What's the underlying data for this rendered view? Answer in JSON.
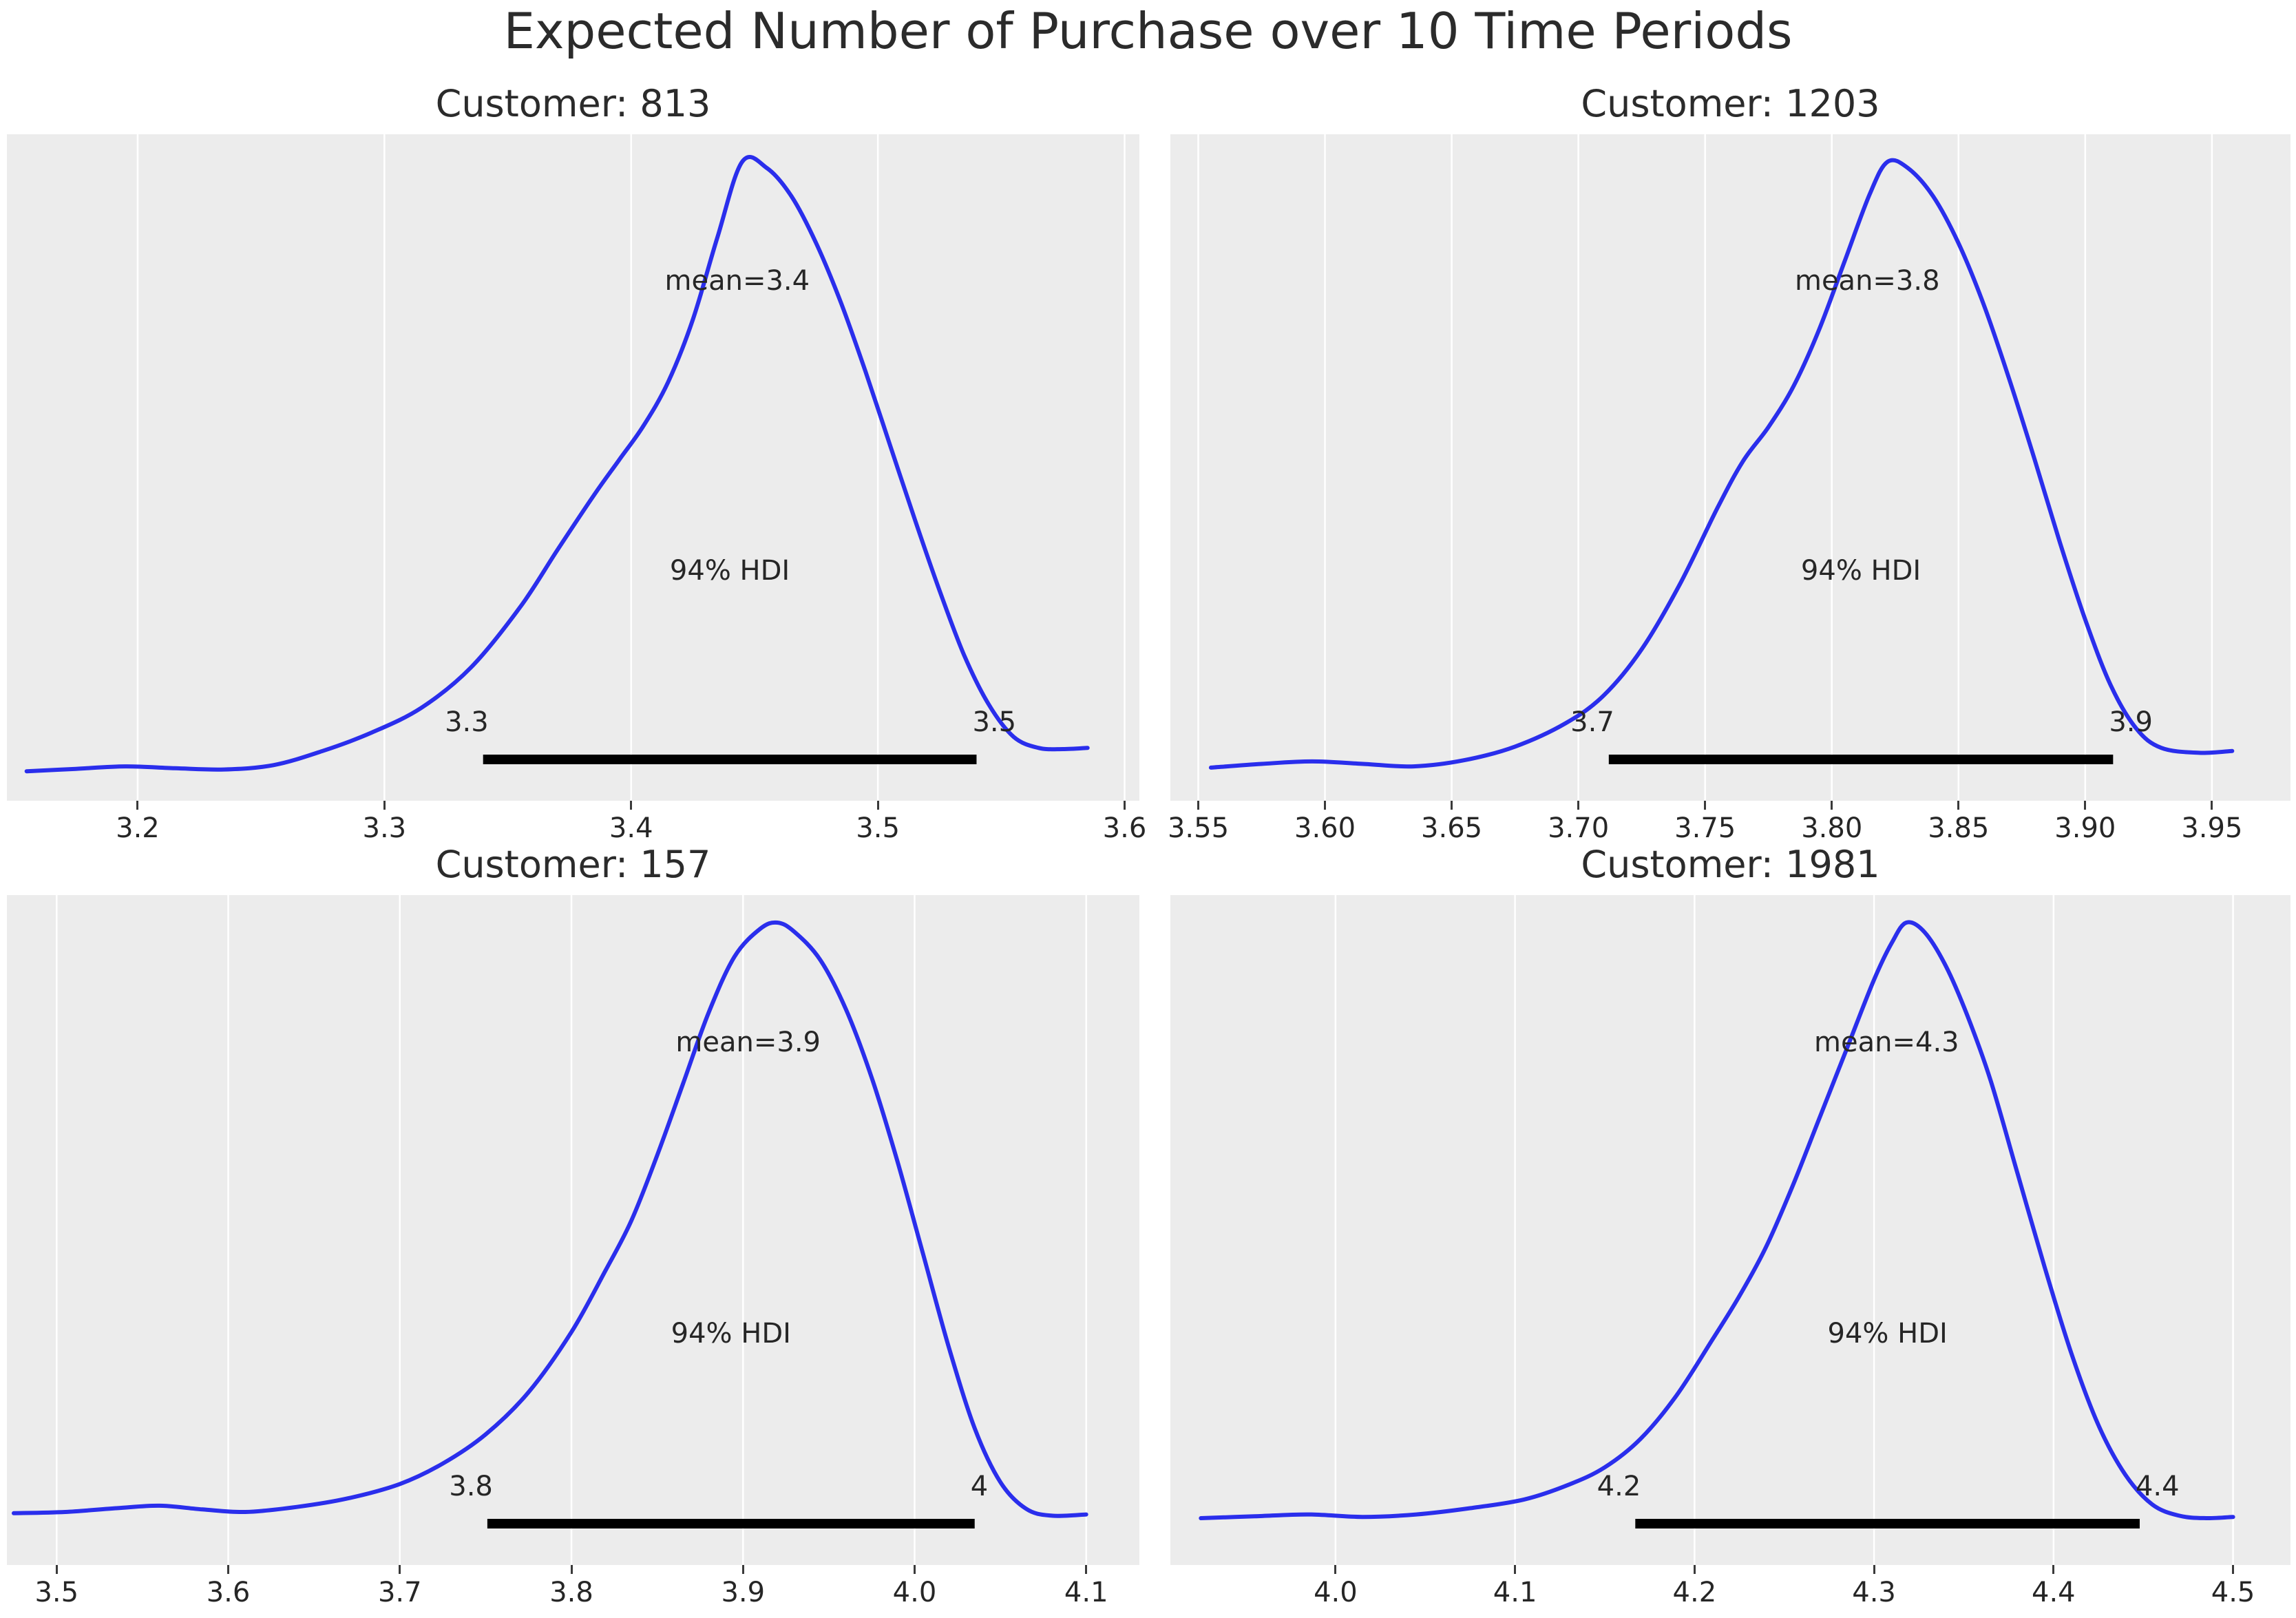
{
  "figure": {
    "title": "Expected Number of Purchase over 10 Time Periods"
  },
  "colors": {
    "figure_bg": "#ffffff",
    "axes_bg": "#ececec",
    "grid": "#ffffff",
    "curve": "#2a2eec",
    "hdi_bar": "#000000",
    "text": "#262626"
  },
  "chart_data": {
    "type": "line",
    "title": "Expected Number of Purchase over 10 Time Periods",
    "subtype": "posterior-kde-grid",
    "rows": 2,
    "cols": 2,
    "grid": "vertical white gridlines only, gray panel background, no y-axis",
    "legend": "none",
    "plots": [
      {
        "title": "Customer: 813",
        "mean_label": "mean=3.4",
        "mean_value": 3.4,
        "mean_x": 3.443,
        "hdi_text": "94% HDI",
        "hdi_interval": [
          3.34,
          3.54
        ],
        "hdi_lower_label": "3.3",
        "hdi_upper_label": "3.5",
        "xlim": [
          3.147,
          3.606
        ],
        "xticks": [
          3.2,
          3.3,
          3.4,
          3.5,
          3.6
        ],
        "xtick_labels": [
          "3.2",
          "3.3",
          "3.4",
          "3.5",
          "3.6"
        ],
        "kde_x": [
          3.155,
          3.175,
          3.195,
          3.215,
          3.235,
          3.255,
          3.275,
          3.295,
          3.315,
          3.335,
          3.355,
          3.37,
          3.385,
          3.395,
          3.405,
          3.415,
          3.425,
          3.435,
          3.445,
          3.455,
          3.465,
          3.475,
          3.485,
          3.495,
          3.505,
          3.515,
          3.525,
          3.535,
          3.545,
          3.555,
          3.565,
          3.575,
          3.585
        ],
        "kde_density": [
          0.012,
          0.016,
          0.02,
          0.017,
          0.015,
          0.022,
          0.045,
          0.075,
          0.115,
          0.18,
          0.278,
          0.37,
          0.46,
          0.516,
          0.572,
          0.643,
          0.744,
          0.878,
          1.0,
          0.99,
          0.944,
          0.868,
          0.772,
          0.66,
          0.54,
          0.42,
          0.305,
          0.2,
          0.12,
          0.068,
          0.05,
          0.048,
          0.05
        ]
      },
      {
        "title": "Customer: 1203",
        "mean_label": "mean=3.8",
        "mean_value": 3.8,
        "mean_x": 3.814,
        "hdi_text": "94% HDI",
        "hdi_interval": [
          3.712,
          3.911
        ],
        "hdi_lower_label": "3.7",
        "hdi_upper_label": "3.9",
        "xlim": [
          3.539,
          3.981
        ],
        "xticks": [
          3.55,
          3.6,
          3.65,
          3.7,
          3.75,
          3.8,
          3.85,
          3.9,
          3.95
        ],
        "xtick_labels": [
          "3.55",
          "3.60",
          "3.65",
          "3.70",
          "3.75",
          "3.80",
          "3.85",
          "3.90",
          "3.95"
        ],
        "kde_x": [
          3.555,
          3.575,
          3.595,
          3.615,
          3.635,
          3.655,
          3.675,
          3.695,
          3.71,
          3.725,
          3.74,
          3.755,
          3.765,
          3.775,
          3.785,
          3.795,
          3.805,
          3.815,
          3.822,
          3.83,
          3.84,
          3.85,
          3.86,
          3.87,
          3.88,
          3.89,
          3.9,
          3.91,
          3.92,
          3.93,
          3.945,
          3.958
        ],
        "kde_density": [
          0.018,
          0.024,
          0.028,
          0.024,
          0.02,
          0.03,
          0.052,
          0.09,
          0.135,
          0.21,
          0.315,
          0.44,
          0.515,
          0.57,
          0.637,
          0.728,
          0.838,
          0.948,
          1.0,
          0.99,
          0.944,
          0.868,
          0.768,
          0.648,
          0.518,
          0.383,
          0.258,
          0.152,
          0.082,
          0.05,
          0.042,
          0.045
        ]
      },
      {
        "title": "Customer: 157",
        "mean_label": "mean=3.9",
        "mean_value": 3.9,
        "mean_x": 3.903,
        "hdi_text": "94% HDI",
        "hdi_interval": [
          3.751,
          4.035
        ],
        "hdi_lower_label": "3.8",
        "hdi_upper_label": "4",
        "xlim": [
          3.471,
          4.131
        ],
        "xticks": [
          3.5,
          3.6,
          3.7,
          3.8,
          3.9,
          4.0,
          4.1
        ],
        "xtick_labels": [
          "3.5",
          "3.6",
          "3.7",
          "3.8",
          "3.9",
          "4.0",
          "4.1"
        ],
        "kde_x": [
          3.475,
          3.505,
          3.535,
          3.56,
          3.585,
          3.61,
          3.64,
          3.67,
          3.7,
          3.725,
          3.75,
          3.775,
          3.8,
          3.82,
          3.835,
          3.85,
          3.865,
          3.88,
          3.895,
          3.91,
          3.92,
          3.93,
          3.945,
          3.96,
          3.975,
          3.99,
          4.005,
          4.02,
          4.035,
          4.05,
          4.065,
          4.08,
          4.1
        ],
        "kde_density": [
          0.048,
          0.05,
          0.056,
          0.06,
          0.054,
          0.05,
          0.058,
          0.072,
          0.095,
          0.128,
          0.175,
          0.243,
          0.34,
          0.44,
          0.52,
          0.625,
          0.74,
          0.855,
          0.945,
          0.99,
          1.0,
          0.985,
          0.94,
          0.86,
          0.75,
          0.615,
          0.465,
          0.315,
          0.185,
          0.098,
          0.055,
          0.044,
          0.046
        ]
      },
      {
        "title": "Customer: 1981",
        "mean_label": "mean=4.3",
        "mean_value": 4.3,
        "mean_x": 4.307,
        "hdi_text": "94% HDI",
        "hdi_interval": [
          4.167,
          4.448
        ],
        "hdi_lower_label": "4.2",
        "hdi_upper_label": "4.4",
        "xlim": [
          3.908,
          4.532
        ],
        "xticks": [
          4.0,
          4.1,
          4.2,
          4.3,
          4.4,
          4.5
        ],
        "xtick_labels": [
          "4.0",
          "4.1",
          "4.2",
          "4.3",
          "4.4",
          "4.5"
        ],
        "kde_x": [
          3.925,
          3.955,
          3.985,
          4.015,
          4.045,
          4.075,
          4.105,
          4.13,
          4.15,
          4.17,
          4.19,
          4.21,
          4.225,
          4.24,
          4.255,
          4.27,
          4.285,
          4.3,
          4.31,
          4.318,
          4.328,
          4.34,
          4.352,
          4.365,
          4.38,
          4.395,
          4.41,
          4.425,
          4.44,
          4.455,
          4.47,
          4.485,
          4.5
        ],
        "kde_density": [
          0.04,
          0.043,
          0.046,
          0.042,
          0.046,
          0.056,
          0.07,
          0.094,
          0.122,
          0.168,
          0.238,
          0.328,
          0.398,
          0.478,
          0.578,
          0.688,
          0.798,
          0.908,
          0.968,
          1.0,
          0.985,
          0.93,
          0.85,
          0.745,
          0.595,
          0.445,
          0.305,
          0.19,
          0.11,
          0.062,
          0.044,
          0.04,
          0.042
        ]
      }
    ]
  }
}
